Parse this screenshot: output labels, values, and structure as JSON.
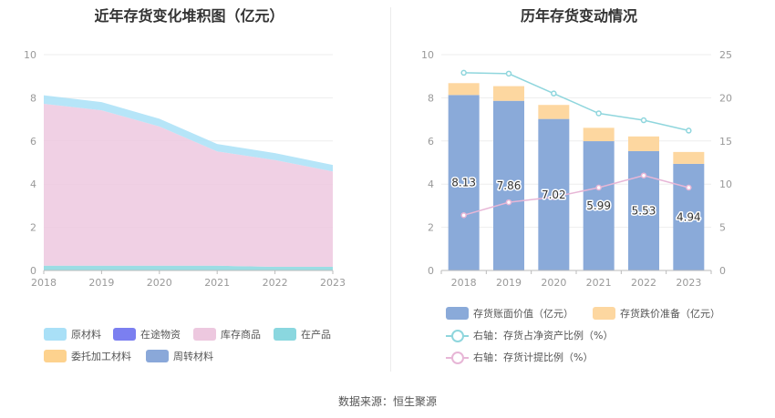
{
  "source": "数据来源：恒生聚源",
  "chart_data": [
    {
      "type": "area",
      "stacked": true,
      "title": "近年存货变化堆积图（亿元）",
      "x": [
        "2018",
        "2019",
        "2020",
        "2021",
        "2022",
        "2023"
      ],
      "ylim": [
        0,
        10
      ],
      "yticks": [
        "0",
        "2",
        "4",
        "6",
        "8",
        "10"
      ],
      "series": [
        {
          "name": "原材料",
          "color": "#a9e0f7",
          "values": [
            0.4,
            0.38,
            0.36,
            0.34,
            0.32,
            0.3
          ]
        },
        {
          "name": "在途物资",
          "color": "#7b7ff0",
          "values": [
            0,
            0,
            0,
            0,
            0,
            0
          ]
        },
        {
          "name": "库存商品",
          "color": "#edc8df",
          "values": [
            7.5,
            7.2,
            6.45,
            5.3,
            4.95,
            4.42
          ]
        },
        {
          "name": "在产品",
          "color": "#8ad7df",
          "values": [
            0.2,
            0.2,
            0.2,
            0.2,
            0.15,
            0.15
          ]
        },
        {
          "name": "委托加工材料",
          "color": "#fdd28e",
          "values": [
            0,
            0,
            0,
            0,
            0,
            0
          ]
        },
        {
          "name": "周转材料",
          "color": "#8aa8d9",
          "values": [
            0.02,
            0.02,
            0.02,
            0.02,
            0.02,
            0.02
          ]
        }
      ]
    },
    {
      "type": "bar",
      "stacked": true,
      "title": "历年存货变动情况",
      "categories": [
        "2018",
        "2019",
        "2020",
        "2021",
        "2022",
        "2023"
      ],
      "ylim": [
        0,
        10
      ],
      "yticks": [
        "0",
        "2",
        "4",
        "6",
        "8",
        "10"
      ],
      "y2lim": [
        0,
        25
      ],
      "y2ticks": [
        "0",
        "5",
        "10",
        "15",
        "20",
        "25"
      ],
      "series": [
        {
          "name": "存货账面价值（亿元）",
          "color": "#8aaad9",
          "values": [
            8.13,
            7.86,
            7.02,
            5.99,
            5.53,
            4.94
          ],
          "labels": [
            "8.13",
            "7.86",
            "7.02",
            "5.99",
            "5.53",
            "4.94"
          ]
        },
        {
          "name": "存货跌价准备（亿元）",
          "color": "#fdd7a0",
          "values": [
            0.55,
            0.68,
            0.65,
            0.62,
            0.68,
            0.55
          ]
        }
      ],
      "lines": [
        {
          "name": "右轴：存货占净资产比例（%）",
          "color": "#8fd6dd",
          "axis": "right",
          "values": [
            22.9,
            22.8,
            20.5,
            18.2,
            17.4,
            16.2
          ]
        },
        {
          "name": "右轴：存货计提比例（%）",
          "color": "#e7b6d6",
          "axis": "right",
          "values": [
            6.4,
            7.9,
            8.5,
            9.6,
            11.0,
            9.6
          ]
        }
      ]
    }
  ]
}
